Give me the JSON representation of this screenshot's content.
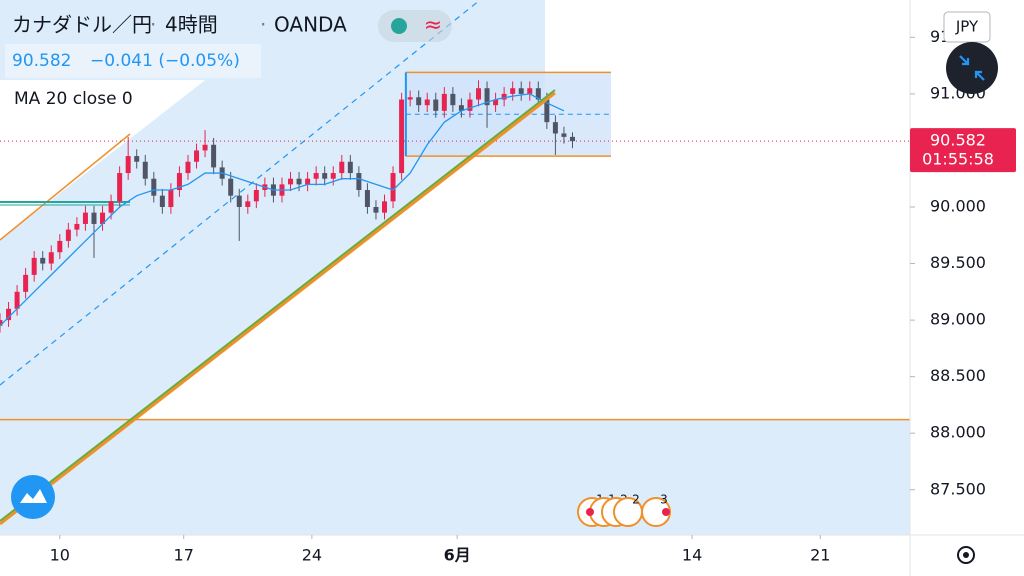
{
  "chart_data": {
    "type": "candlestick",
    "symbol": "カナダドル／円",
    "interval": "4時間",
    "source": "OANDA",
    "last_price": 90.582,
    "change": "−0.041 (−0.05%)",
    "indicator": "MA 20 close 0",
    "currency": "JPY",
    "countdown": "01:55:58",
    "up_color": "#e8234f",
    "down_color": "#4f5566",
    "ma_color": "#2196f3",
    "xlim": [
      0,
      213
    ],
    "xticks": [
      {
        "value": 14,
        "label": "10"
      },
      {
        "value": 43,
        "label": "17"
      },
      {
        "value": 73,
        "label": "24"
      },
      {
        "value": 107,
        "label": "6月"
      },
      {
        "value": 162,
        "label": "14"
      },
      {
        "value": 192,
        "label": "21"
      }
    ],
    "ylim": [
      87.1,
      91.83
    ],
    "yticks": [
      {
        "value": 87.5,
        "label": "87.500"
      },
      {
        "value": 88,
        "label": "88.000"
      },
      {
        "value": 88.5,
        "label": "88.500"
      },
      {
        "value": 89,
        "label": "89.000"
      },
      {
        "value": 89.5,
        "label": "89.500"
      },
      {
        "value": 90,
        "label": "90.000"
      },
      {
        "value": 90.5,
        "label": "90.500"
      },
      {
        "value": 91,
        "label": "91.000"
      },
      {
        "value": 91.5,
        "label": "91.500"
      }
    ],
    "x": [
      0,
      2,
      4,
      6,
      8,
      10,
      12,
      14,
      16,
      18,
      20,
      22,
      24,
      26,
      28,
      30,
      32,
      34,
      36,
      38,
      40,
      42,
      44,
      46,
      48,
      50,
      52,
      54,
      56,
      58,
      60,
      62,
      64,
      66,
      68,
      70,
      72,
      74,
      76,
      78,
      80,
      82,
      84,
      86,
      88,
      90,
      92,
      94,
      96,
      98,
      100,
      102,
      104,
      106,
      108,
      110,
      112,
      114,
      116,
      118,
      120,
      122,
      124,
      126,
      128,
      130,
      132,
      134
    ],
    "open": [
      88.95,
      89.0,
      89.1,
      89.25,
      89.4,
      89.55,
      89.5,
      89.6,
      89.7,
      89.8,
      89.85,
      89.95,
      89.85,
      89.95,
      90.05,
      90.3,
      90.45,
      90.4,
      90.25,
      90.1,
      90.0,
      90.15,
      90.3,
      90.4,
      90.5,
      90.55,
      90.35,
      90.25,
      90.1,
      90.0,
      90.05,
      90.15,
      90.2,
      90.1,
      90.2,
      90.25,
      90.2,
      90.25,
      90.3,
      90.25,
      90.3,
      90.4,
      90.3,
      90.15,
      90.0,
      89.95,
      90.05,
      90.3,
      90.95,
      90.97,
      90.9,
      90.95,
      90.85,
      91.0,
      90.9,
      90.85,
      90.95,
      91.05,
      90.9,
      90.95,
      91.0,
      91.05,
      91.0,
      91.05,
      90.95,
      90.75,
      90.65,
      90.62
    ],
    "high": [
      89.06,
      89.16,
      89.31,
      89.46,
      89.61,
      89.61,
      89.66,
      89.76,
      89.86,
      89.91,
      90.01,
      90.01,
      90.01,
      90.11,
      90.36,
      90.62,
      90.51,
      90.46,
      90.31,
      90.16,
      90.21,
      90.36,
      90.46,
      90.56,
      90.68,
      90.61,
      90.41,
      90.31,
      90.16,
      90.11,
      90.21,
      90.26,
      90.26,
      90.26,
      90.31,
      90.31,
      90.31,
      90.36,
      90.36,
      90.36,
      90.46,
      90.46,
      90.36,
      90.21,
      90.06,
      90.11,
      90.36,
      91.01,
      91.03,
      91.03,
      91.01,
      91.01,
      91.06,
      91.06,
      90.96,
      91.01,
      91.12,
      91.11,
      91.01,
      91.06,
      91.11,
      91.11,
      91.11,
      91.11,
      91.01,
      90.81,
      90.71,
      90.66
    ],
    "low": [
      88.89,
      88.94,
      89.04,
      89.19,
      89.34,
      89.44,
      89.44,
      89.54,
      89.64,
      89.74,
      89.79,
      89.55,
      89.79,
      89.89,
      89.99,
      90.24,
      90.34,
      90.19,
      90.04,
      89.94,
      89.94,
      90.09,
      90.24,
      90.34,
      90.44,
      90.29,
      90.19,
      90.04,
      89.7,
      89.94,
      89.99,
      90.09,
      90.04,
      90.04,
      90.14,
      90.14,
      90.14,
      90.19,
      90.19,
      90.19,
      90.24,
      90.24,
      90.09,
      89.94,
      89.89,
      89.89,
      89.99,
      90.24,
      90.89,
      90.84,
      90.84,
      90.79,
      90.79,
      90.84,
      90.79,
      90.79,
      90.89,
      90.7,
      90.84,
      90.89,
      90.94,
      90.94,
      90.94,
      90.89,
      90.69,
      90.46,
      90.56,
      90.52
    ],
    "close": [
      89.0,
      89.1,
      89.25,
      89.4,
      89.55,
      89.5,
      89.6,
      89.7,
      89.8,
      89.85,
      89.95,
      89.85,
      89.95,
      90.05,
      90.3,
      90.45,
      90.4,
      90.25,
      90.1,
      90.0,
      90.15,
      90.3,
      90.4,
      90.5,
      90.55,
      90.35,
      90.25,
      90.1,
      90.0,
      90.05,
      90.15,
      90.2,
      90.1,
      90.2,
      90.25,
      90.2,
      90.25,
      90.3,
      90.25,
      90.3,
      90.4,
      90.3,
      90.15,
      90.0,
      89.95,
      90.05,
      90.3,
      90.95,
      90.97,
      90.9,
      90.95,
      90.85,
      91.0,
      90.9,
      90.85,
      90.95,
      91.05,
      90.9,
      90.95,
      91.0,
      91.05,
      91.0,
      91.05,
      90.95,
      90.75,
      90.65,
      90.62,
      90.582
    ],
    "ma_x": [
      0,
      4,
      8,
      12,
      16,
      20,
      24,
      28,
      32,
      36,
      40,
      44,
      48,
      52,
      56,
      60,
      64,
      68,
      72,
      76,
      80,
      84,
      88,
      92,
      96,
      100,
      104,
      108,
      112,
      116,
      120,
      124,
      128,
      132
    ],
    "ma": [
      88.95,
      89.1,
      89.25,
      89.4,
      89.55,
      89.7,
      89.85,
      90.0,
      90.1,
      90.15,
      90.15,
      90.2,
      90.3,
      90.3,
      90.25,
      90.2,
      90.15,
      90.15,
      90.2,
      90.2,
      90.25,
      90.25,
      90.2,
      90.15,
      90.3,
      90.55,
      90.75,
      90.85,
      90.9,
      90.95,
      90.98,
      91.0,
      90.92,
      90.85
    ],
    "horizontal_line": 88.12,
    "range_box": {
      "start": 95,
      "end": 143,
      "top": 91.19,
      "bottom": 90.45,
      "mid": 90.82
    },
    "events": [
      "1",
      "1",
      "2",
      "2",
      "3"
    ]
  }
}
